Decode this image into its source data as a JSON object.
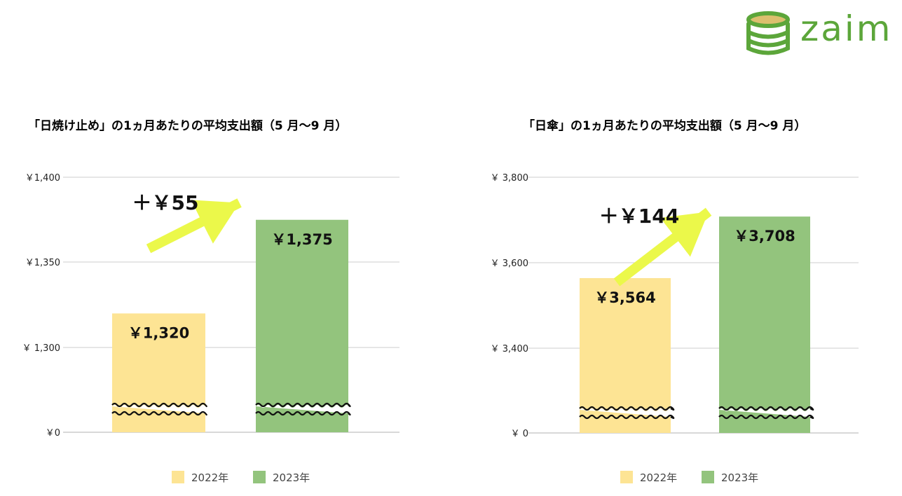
{
  "brand": {
    "name": "zaim",
    "color": "#5ca63a"
  },
  "colors": {
    "year_2022": "#fde494",
    "year_2023": "#93c47d",
    "arrow": "#ebf84a",
    "grid": "#cccccc"
  },
  "legend": [
    {
      "label": "2022年",
      "color": "#fde494"
    },
    {
      "label": "2023年",
      "color": "#93c47d"
    }
  ],
  "chart_data": [
    {
      "type": "bar",
      "title": "「日焼け止め」の1ヵ月あたりの平均支出額（5 月～9 月）",
      "categories": [
        "2022年",
        "2023年"
      ],
      "values": [
        1320,
        1375
      ],
      "value_labels": [
        "￥1,320",
        "￥1,375"
      ],
      "y_ticks": [
        {
          "label": "￥0",
          "value": 0
        },
        {
          "label": "￥ 1,300",
          "value": 1300
        },
        {
          "label": "￥1,350",
          "value": 1350
        },
        {
          "label": "￥1,400",
          "value": 1400
        }
      ],
      "ylim": [
        1300,
        1400
      ],
      "axis_break": true,
      "grid": true,
      "annotation": {
        "label": "＋￥55",
        "value": 55
      },
      "legend_position": "bottom"
    },
    {
      "type": "bar",
      "title": "「日傘」の1ヵ月あたりの平均支出額（5 月～9 月）",
      "categories": [
        "2022年",
        "2023年"
      ],
      "values": [
        3564,
        3708
      ],
      "value_labels": [
        "￥3,564",
        "￥3,708"
      ],
      "y_ticks": [
        {
          "label": "￥ 0",
          "value": 0
        },
        {
          "label": "￥ 3,400",
          "value": 3400
        },
        {
          "label": "￥ 3,600",
          "value": 3600
        },
        {
          "label": "￥ 3,800",
          "value": 3800
        }
      ],
      "ylim": [
        3400,
        3800
      ],
      "axis_break": true,
      "grid": true,
      "annotation": {
        "label": "＋￥144",
        "value": 144
      },
      "legend_position": "bottom"
    }
  ]
}
